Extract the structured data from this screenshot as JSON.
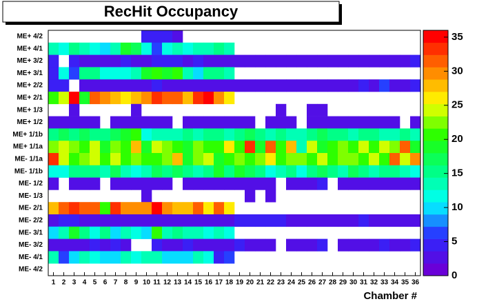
{
  "chart_data": {
    "type": "heatmap",
    "title": "RecHit Occupancy",
    "x_label": "Chamber #",
    "x": [
      1,
      2,
      3,
      4,
      5,
      6,
      7,
      8,
      9,
      10,
      11,
      12,
      13,
      14,
      15,
      16,
      17,
      18,
      19,
      20,
      21,
      22,
      23,
      24,
      25,
      26,
      27,
      28,
      29,
      30,
      31,
      32,
      33,
      34,
      35,
      36
    ],
    "y": [
      "ME+ 4/2",
      "ME+ 4/1",
      "ME+ 3/2",
      "ME+ 3/1",
      "ME+ 2/2",
      "ME+ 2/1",
      "ME+ 1/3",
      "ME+ 1/2",
      "ME+ 1/1b",
      "ME+ 1/1a",
      "ME- 1/1a",
      "ME- 1/1b",
      "ME- 1/2",
      "ME- 1/3",
      "ME- 2/1",
      "ME- 2/2",
      "ME- 3/1",
      "ME- 3/2",
      "ME- 4/1",
      "ME- 4/2"
    ],
    "z": [
      [
        null,
        null,
        null,
        null,
        null,
        null,
        null,
        null,
        null,
        4,
        5,
        4,
        2,
        null,
        null,
        null,
        null,
        null,
        null,
        null,
        null,
        null,
        null,
        null,
        null,
        null,
        null,
        null,
        null,
        null,
        null,
        null,
        null,
        null,
        null,
        null
      ],
      [
        14,
        12,
        15,
        14,
        12,
        10,
        14,
        18,
        17,
        11,
        6,
        12,
        13,
        12,
        13,
        14,
        16,
        14,
        null,
        null,
        null,
        null,
        null,
        null,
        null,
        null,
        null,
        null,
        null,
        null,
        null,
        null,
        null,
        null,
        null,
        null
      ],
      [
        4,
        null,
        5,
        3,
        3,
        3,
        3,
        4,
        3,
        2,
        4,
        4,
        4,
        3,
        4,
        3,
        3,
        3,
        3,
        3,
        3,
        3,
        2,
        2,
        3,
        2,
        3,
        3,
        3,
        3,
        3,
        3,
        3,
        3,
        3,
        4
      ],
      [
        4,
        11,
        7,
        15,
        15,
        12,
        12,
        12,
        14,
        18,
        20,
        18,
        20,
        14,
        9,
        15,
        16,
        14,
        null,
        null,
        null,
        null,
        null,
        null,
        null,
        null,
        null,
        null,
        null,
        null,
        null,
        null,
        null,
        null,
        null,
        null
      ],
      [
        4,
        4,
        null,
        3,
        3,
        3,
        3,
        3,
        3,
        3,
        4,
        3,
        3,
        3,
        2,
        3,
        3,
        3,
        3,
        3,
        3,
        3,
        3,
        3,
        3,
        3,
        3,
        3,
        3,
        3,
        4,
        3,
        6,
        3,
        3,
        4
      ],
      [
        20,
        25,
        35,
        18,
        31,
        30,
        27,
        26,
        27,
        29,
        34,
        31,
        32,
        27,
        34,
        35,
        30,
        26,
        null,
        null,
        null,
        null,
        null,
        null,
        null,
        null,
        null,
        null,
        null,
        null,
        null,
        null,
        null,
        null,
        null,
        null
      ],
      [
        null,
        null,
        2,
        null,
        null,
        null,
        null,
        null,
        2,
        null,
        null,
        null,
        null,
        null,
        null,
        null,
        null,
        null,
        null,
        null,
        null,
        null,
        3,
        null,
        null,
        3,
        3,
        null,
        null,
        null,
        null,
        null,
        null,
        null,
        null,
        null
      ],
      [
        3,
        3,
        3,
        2,
        3,
        null,
        3,
        3,
        2,
        3,
        3,
        2,
        null,
        3,
        2,
        3,
        3,
        2,
        3,
        3,
        null,
        3,
        3,
        2,
        null,
        3,
        3,
        2,
        3,
        3,
        3,
        2,
        3,
        3,
        null,
        3
      ],
      [
        16,
        17,
        16,
        17,
        16,
        15,
        17,
        18,
        20,
        12,
        14,
        13,
        14,
        15,
        13,
        16,
        16,
        14,
        15,
        17,
        15,
        14,
        16,
        14,
        13,
        15,
        17,
        16,
        15,
        14,
        16,
        15,
        14,
        13,
        15,
        14
      ],
      [
        22,
        25,
        22,
        20,
        25,
        19,
        23,
        20,
        27,
        19,
        25,
        22,
        20,
        19,
        22,
        20,
        20,
        26,
        20,
        33,
        19,
        31,
        20,
        27,
        13,
        25,
        18,
        20,
        22,
        20,
        25,
        20,
        24,
        22,
        32,
        19
      ],
      [
        33,
        24,
        20,
        22,
        24,
        20,
        25,
        21,
        23,
        20,
        21,
        22,
        27,
        19,
        22,
        24,
        18,
        20,
        22,
        21,
        23,
        26,
        21,
        23,
        22,
        20,
        24,
        21,
        22,
        22,
        20,
        24,
        21,
        31,
        24,
        29
      ],
      [
        12,
        11,
        15,
        16,
        16,
        13,
        17,
        14,
        12,
        14,
        17,
        16,
        17,
        15,
        14,
        16,
        19,
        16,
        18,
        17,
        15,
        12,
        14,
        16,
        11,
        15,
        17,
        16,
        14,
        17,
        15,
        14,
        16,
        15,
        14,
        12
      ],
      [
        3,
        null,
        3,
        3,
        3,
        null,
        3,
        3,
        3,
        3,
        3,
        3,
        null,
        3,
        3,
        3,
        3,
        3,
        3,
        3,
        3,
        3,
        null,
        3,
        3,
        3,
        5,
        null,
        3,
        3,
        3,
        3,
        3,
        3,
        3,
        3
      ],
      [
        null,
        null,
        null,
        null,
        null,
        null,
        null,
        null,
        null,
        3,
        null,
        null,
        null,
        null,
        null,
        null,
        null,
        null,
        null,
        3,
        null,
        3,
        null,
        null,
        null,
        null,
        null,
        null,
        null,
        null,
        null,
        null,
        null,
        null,
        null,
        null
      ],
      [
        27,
        31,
        33,
        32,
        31,
        20,
        33,
        30,
        29,
        30,
        35,
        29,
        27,
        27,
        31,
        26,
        31,
        26,
        null,
        null,
        null,
        null,
        null,
        null,
        null,
        null,
        null,
        null,
        null,
        null,
        null,
        null,
        null,
        null,
        null,
        null
      ],
      [
        3,
        4,
        4,
        3,
        3,
        3,
        3,
        3,
        3,
        3,
        3,
        3,
        3,
        3,
        3,
        3,
        3,
        3,
        4,
        4,
        4,
        4,
        4,
        3,
        3,
        3,
        3,
        3,
        3,
        3,
        4,
        3,
        3,
        3,
        3,
        3
      ],
      [
        9,
        13,
        18,
        16,
        12,
        16,
        9,
        14,
        12,
        9,
        20,
        14,
        15,
        13,
        13,
        12,
        13,
        12,
        null,
        null,
        null,
        null,
        null,
        null,
        null,
        null,
        null,
        null,
        null,
        null,
        null,
        null,
        null,
        null,
        null,
        null
      ],
      [
        3,
        3,
        3,
        3,
        4,
        3,
        5,
        3,
        null,
        null,
        5,
        3,
        3,
        4,
        3,
        3,
        3,
        3,
        4,
        3,
        3,
        3,
        null,
        3,
        3,
        3,
        4,
        null,
        3,
        3,
        3,
        3,
        4,
        3,
        3,
        4
      ],
      [
        14,
        6,
        10,
        14,
        12,
        10,
        9,
        14,
        12,
        13,
        14,
        10,
        9,
        10,
        13,
        12,
        5,
        6,
        null,
        null,
        null,
        null,
        null,
        null,
        null,
        null,
        null,
        null,
        null,
        null,
        null,
        null,
        null,
        null,
        null,
        null
      ],
      [
        null,
        null,
        null,
        null,
        null,
        null,
        null,
        null,
        null,
        null,
        null,
        null,
        null,
        null,
        null,
        null,
        null,
        null,
        null,
        null,
        null,
        null,
        null,
        null,
        null,
        null,
        null,
        null,
        null,
        null,
        null,
        null,
        null,
        null,
        null,
        null
      ]
    ],
    "zlim": [
      0,
      36
    ],
    "zticks": [
      0,
      5,
      10,
      15,
      20,
      25,
      30,
      35
    ],
    "colors": [
      "#6a00d8",
      "#2a2aff",
      "#00ffff",
      "#00ff80",
      "#22ff00",
      "#ffff00",
      "#ff8000",
      "#ff0000"
    ]
  }
}
